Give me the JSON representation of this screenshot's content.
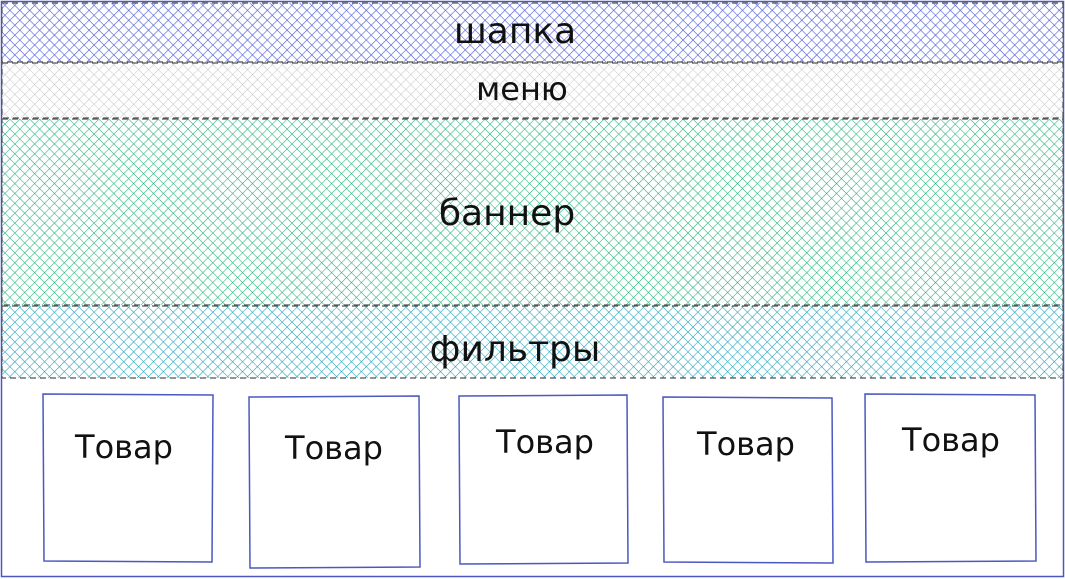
{
  "wireframe": {
    "header": {
      "label": "шапка",
      "fill": "#4a5ad8"
    },
    "menu": {
      "label": "меню",
      "fill": "#b8b8b8"
    },
    "banner": {
      "label": "баннер",
      "fill": "#1fb07a"
    },
    "filters": {
      "label": "фильтры",
      "fill": "#1a9fb8"
    },
    "products": [
      {
        "label": "Товар"
      },
      {
        "label": "Товар"
      },
      {
        "label": "Товар"
      },
      {
        "label": "Товар"
      },
      {
        "label": "Товар"
      }
    ],
    "outline_color": "#4a58c0",
    "dash_color": "#555555"
  }
}
